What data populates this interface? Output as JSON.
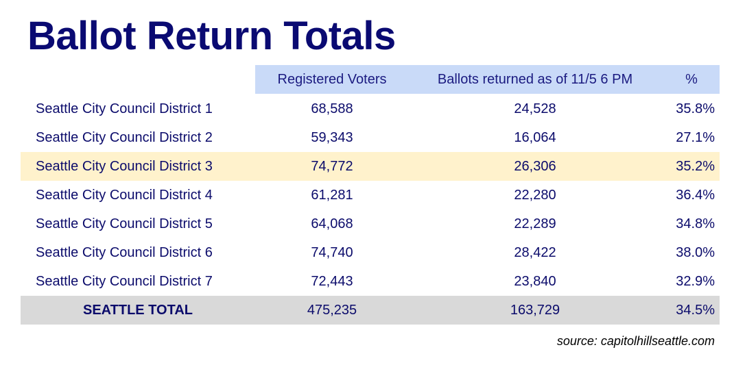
{
  "title": "Ballot Return Totals",
  "table": {
    "header": [
      "Registered Voters",
      "Ballots returned as of 11/5 6 PM",
      "%"
    ],
    "rows": [
      [
        "Seattle City Council District 1",
        "68,588",
        "24,528",
        "35.8%"
      ],
      [
        "Seattle City Council District 2",
        "59,343",
        "16,064",
        "27.1%"
      ],
      [
        "Seattle City Council District 3",
        "74,772",
        "26,306",
        "35.2%"
      ],
      [
        "Seattle City Council District 4",
        "61,281",
        "22,280",
        "36.4%"
      ],
      [
        "Seattle City Council District 5",
        "64,068",
        "22,289",
        "34.8%"
      ],
      [
        "Seattle City Council District 6",
        "74,740",
        "28,422",
        "38.0%"
      ],
      [
        "Seattle City Council District 7",
        "72,443",
        "23,840",
        "32.9%"
      ]
    ],
    "total": [
      "SEATTLE TOTAL",
      "475,235",
      "163,729",
      "34.5%"
    ]
  },
  "source": "source: capitolhillseattle.com"
}
